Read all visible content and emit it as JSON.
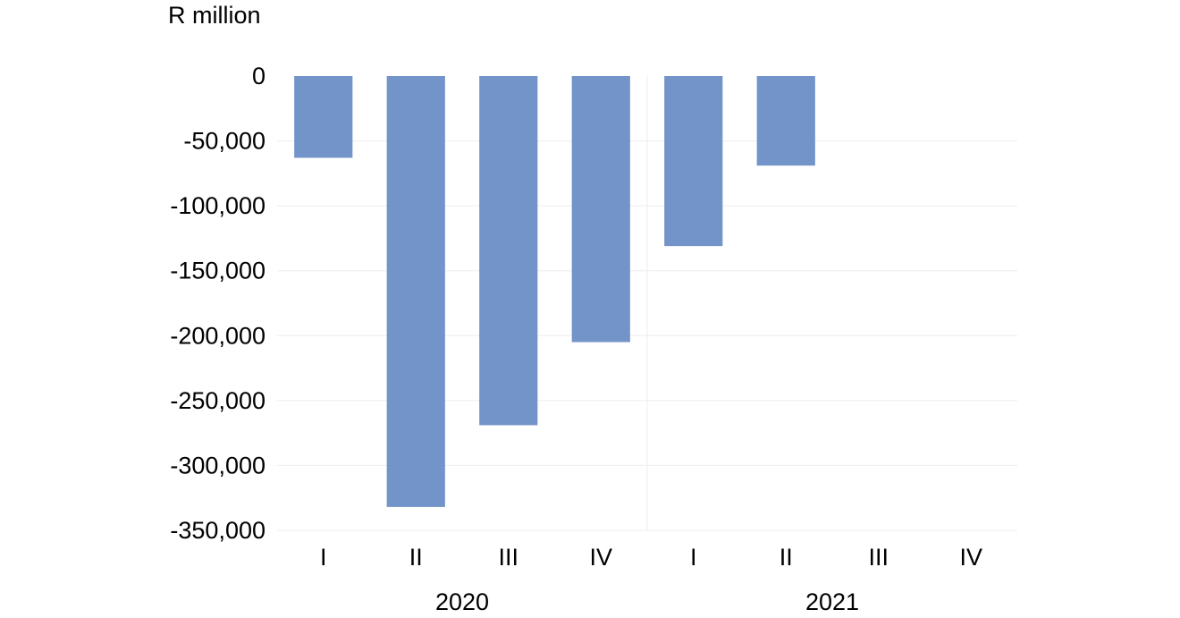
{
  "chart_data": {
    "type": "bar",
    "ylabel": "R million",
    "categories": [
      "I",
      "II",
      "III",
      "IV",
      "I",
      "II",
      "III",
      "IV"
    ],
    "groups": [
      {
        "label": "2020",
        "categories": [
          "I",
          "II",
          "III",
          "IV"
        ]
      },
      {
        "label": "2021",
        "categories": [
          "I",
          "II",
          "III",
          "IV"
        ]
      }
    ],
    "series": [
      {
        "values": [
          -63000,
          -332000,
          -269000,
          -205000,
          -131000,
          -69000,
          null,
          null
        ]
      }
    ],
    "ylim": [
      -350000,
      0
    ],
    "yticks": [
      0,
      -50000,
      -100000,
      -150000,
      -200000,
      -250000,
      -300000,
      -350000
    ],
    "ytick_labels": [
      "0",
      "-50,000",
      "-100,000",
      "-150,000",
      "-200,000",
      "-250,000",
      "-300,000",
      "-350,000"
    ],
    "grid": true,
    "bar_color": "#7394c8",
    "grid_color": "#eeeeee"
  }
}
